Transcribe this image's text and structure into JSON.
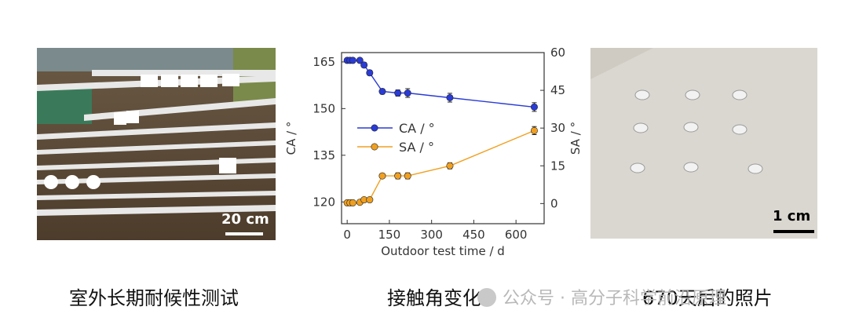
{
  "captions": {
    "left": "室外长期耐候性测试",
    "middle": "接触角变化",
    "right": "670天后的照片"
  },
  "scalebars": {
    "left": "20 cm",
    "right": "1 cm"
  },
  "watermark": "公众号 · 高分子科学前沿原理",
  "chart_data": {
    "type": "line",
    "xlabel": "Outdoor test time / d",
    "ylabel": "CA / °",
    "y2label": "SA / °",
    "xlim": [
      -20,
      700
    ],
    "ylim": [
      113,
      168
    ],
    "y2lim": [
      -8,
      60
    ],
    "xticks": [
      0,
      150,
      300,
      450,
      600
    ],
    "yticks": [
      120,
      135,
      150,
      165
    ],
    "y2ticks": [
      0,
      15,
      30,
      45,
      60
    ],
    "legend_position": "center-left",
    "grid": false,
    "series": [
      {
        "name": "CA / °",
        "axis": "left",
        "color": "#2a3bd6",
        "x": [
          0,
          10,
          20,
          45,
          60,
          80,
          125,
          180,
          215,
          365,
          665
        ],
        "y": [
          165.5,
          165.5,
          165.5,
          165.5,
          164,
          161.5,
          155.5,
          155,
          155,
          153.5,
          150.5
        ],
        "err": [
          0.5,
          0.5,
          0.5,
          0.6,
          0.8,
          0.8,
          0.8,
          1.0,
          1.4,
          1.4,
          1.4
        ]
      },
      {
        "name": "SA / °",
        "axis": "right",
        "color": "#f0a020",
        "x": [
          0,
          10,
          20,
          45,
          60,
          80,
          125,
          180,
          215,
          365,
          665
        ],
        "y": [
          0.3,
          0.3,
          0.3,
          0.5,
          1.5,
          1.5,
          11,
          11,
          11,
          15,
          29
        ],
        "err": [
          0.4,
          0.4,
          0.4,
          0.6,
          0.8,
          0.8,
          0.8,
          1.2,
          1.2,
          1.2,
          1.6
        ]
      }
    ]
  }
}
